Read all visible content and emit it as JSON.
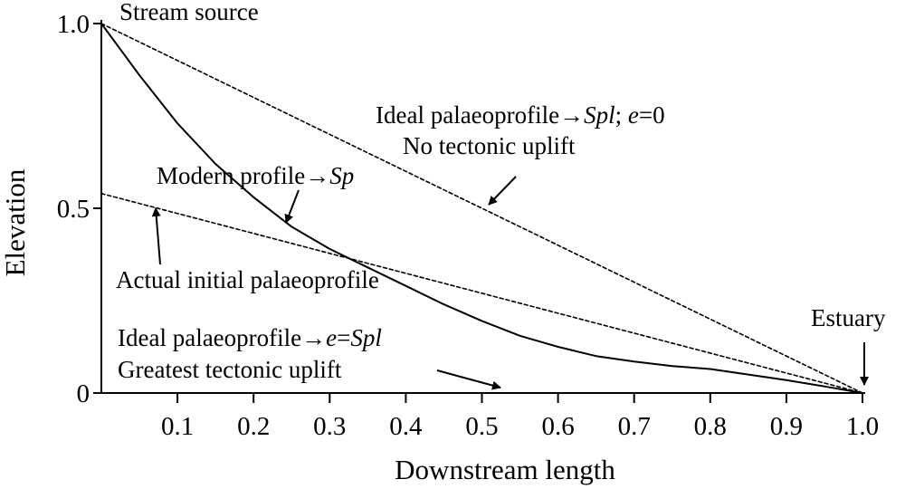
{
  "chart_data": {
    "type": "line",
    "xlabel": "Downstream length",
    "ylabel": "Elevation",
    "xlim": [
      0,
      1.0
    ],
    "ylim": [
      0,
      1.0
    ],
    "x_ticks": [
      0.1,
      0.2,
      0.3,
      0.4,
      0.5,
      0.6,
      0.7,
      0.8,
      0.9,
      1.0
    ],
    "x_tick_labels": [
      "0.1",
      "0.2",
      "0.3",
      "0.4",
      "0.5",
      "0.6",
      "0.7",
      "0.8",
      "0.9",
      "1.0"
    ],
    "y_ticks": [
      0,
      0.5,
      1.0
    ],
    "y_tick_labels": [
      "0",
      "0.5",
      "1.0"
    ],
    "grid": false,
    "series": [
      {
        "style": "solid",
        "x": [
          0,
          0.05,
          0.1,
          0.15,
          0.2,
          0.25,
          0.3,
          0.35,
          0.4,
          0.45,
          0.5,
          0.55,
          0.6,
          0.65,
          0.7,
          0.75,
          0.8,
          0.85,
          0.9,
          0.95,
          1.0
        ],
        "y": [
          1.0,
          0.86,
          0.73,
          0.62,
          0.53,
          0.45,
          0.39,
          0.34,
          0.29,
          0.24,
          0.195,
          0.155,
          0.125,
          0.1,
          0.085,
          0.073,
          0.065,
          0.05,
          0.035,
          0.018,
          0.0
        ]
      },
      {
        "style": "dashed",
        "x": [
          0,
          1.0
        ],
        "y": [
          1.0,
          0.0
        ]
      },
      {
        "style": "dashed",
        "x": [
          0,
          1.0
        ],
        "y": [
          0.54,
          0.0
        ]
      }
    ],
    "annotations": [
      {
        "id": "stream-source",
        "text": "Stream source"
      },
      {
        "id": "ideal-noup-line1",
        "parts": [
          {
            "t": "Ideal palaeoprofile→",
            "i": false
          },
          {
            "t": "Spl",
            "i": true
          },
          {
            "t": "; ",
            "i": false
          },
          {
            "t": "e",
            "i": true
          },
          {
            "t": "=0",
            "i": false
          }
        ]
      },
      {
        "id": "ideal-noup-line2",
        "text": "No tectonic uplift"
      },
      {
        "id": "modern-profile",
        "parts": [
          {
            "t": "Modern profile→",
            "i": false
          },
          {
            "t": "Sp",
            "i": true
          }
        ]
      },
      {
        "id": "actual-initial",
        "text": "Actual initial palaeoprofile"
      },
      {
        "id": "estuary",
        "text": "Estuary"
      },
      {
        "id": "ideal-great-line1",
        "parts": [
          {
            "t": "Ideal palaeoprofile→",
            "i": false
          },
          {
            "t": "e",
            "i": true
          },
          {
            "t": "=",
            "i": false
          },
          {
            "t": "Spl",
            "i": true
          }
        ]
      },
      {
        "id": "ideal-great-line2",
        "text": "Greatest tectonic uplift"
      }
    ]
  }
}
